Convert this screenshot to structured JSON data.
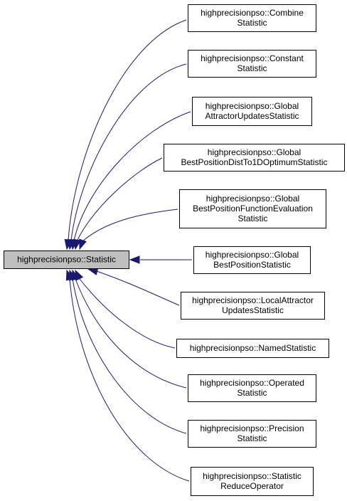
{
  "base_class": {
    "lines": [
      "highprecisionpso::Statistic"
    ]
  },
  "derived_classes": [
    {
      "lines": [
        "highprecisionpso::Combine",
        "Statistic"
      ]
    },
    {
      "lines": [
        "highprecisionpso::Constant",
        "Statistic"
      ]
    },
    {
      "lines": [
        "highprecisionpso::Global",
        "AttractorUpdatesStatistic"
      ]
    },
    {
      "lines": [
        "highprecisionpso::Global",
        "BestPositionDistTo1DOptimumStatistic"
      ]
    },
    {
      "lines": [
        "highprecisionpso::Global",
        "BestPositionFunctionEvaluation",
        "Statistic"
      ]
    },
    {
      "lines": [
        "highprecisionpso::Global",
        "BestPositionStatistic"
      ]
    },
    {
      "lines": [
        "highprecisionpso::LocalAttractor",
        "UpdatesStatistic"
      ]
    },
    {
      "lines": [
        "highprecisionpso::NamedStatistic"
      ]
    },
    {
      "lines": [
        "highprecisionpso::Operated",
        "Statistic"
      ]
    },
    {
      "lines": [
        "highprecisionpso::Precision",
        "Statistic"
      ]
    },
    {
      "lines": [
        "highprecisionpso::Statistic",
        "ReduceOperator"
      ]
    }
  ],
  "colors": {
    "base_fill": "#bfbfbf",
    "node_fill": "#ffffff",
    "border": "#000000",
    "edge": "#191970"
  }
}
